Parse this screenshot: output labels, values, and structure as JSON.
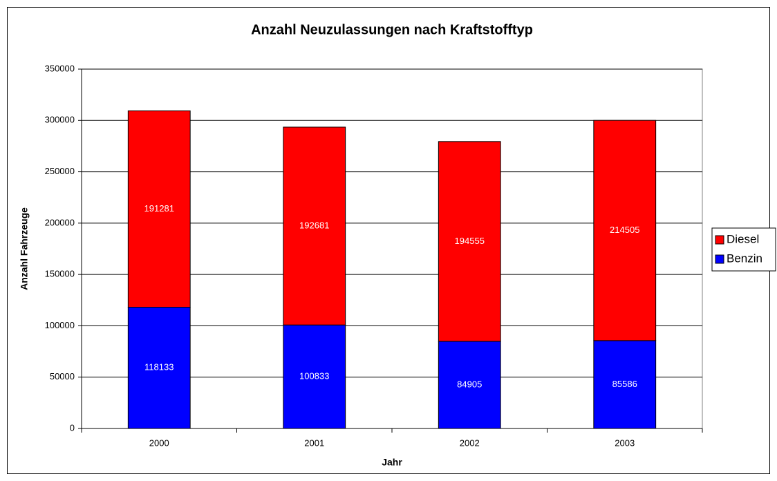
{
  "chart_data": {
    "type": "stacked_bar",
    "title": "Anzahl Neuzulassungen nach Kraftstofftyp",
    "x_label": "Jahr",
    "y_label": "Anzahl Fahrzeuge",
    "categories": [
      "2000",
      "2001",
      "2002",
      "2003"
    ],
    "series": [
      {
        "name": "Benzin",
        "color": "#0000ff",
        "values": [
          118133,
          100833,
          84905,
          85586
        ]
      },
      {
        "name": "Diesel",
        "color": "#ff0000",
        "values": [
          191281,
          192681,
          194555,
          214505
        ]
      }
    ],
    "ylim": [
      0,
      350000
    ],
    "yticks": [
      0,
      50000,
      100000,
      150000,
      200000,
      250000,
      300000,
      350000
    ],
    "grid": true,
    "legend": "right"
  }
}
